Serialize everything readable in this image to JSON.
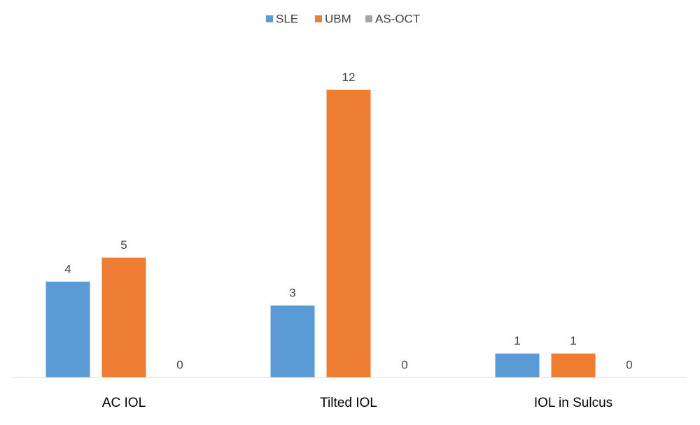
{
  "chart_data": {
    "type": "bar",
    "categories": [
      "AC IOL",
      "Tilted IOL",
      "IOL in Sulcus"
    ],
    "series": [
      {
        "name": "SLE",
        "color": "#5b9bd5",
        "values": [
          4,
          3,
          1
        ]
      },
      {
        "name": "UBM",
        "color": "#ed7d31",
        "values": [
          5,
          12,
          1
        ]
      },
      {
        "name": "AS-OCT",
        "color": "#a5a5a5",
        "values": [
          0,
          0,
          0
        ]
      }
    ],
    "ylim": [
      0,
      14
    ],
    "legend": "top"
  }
}
